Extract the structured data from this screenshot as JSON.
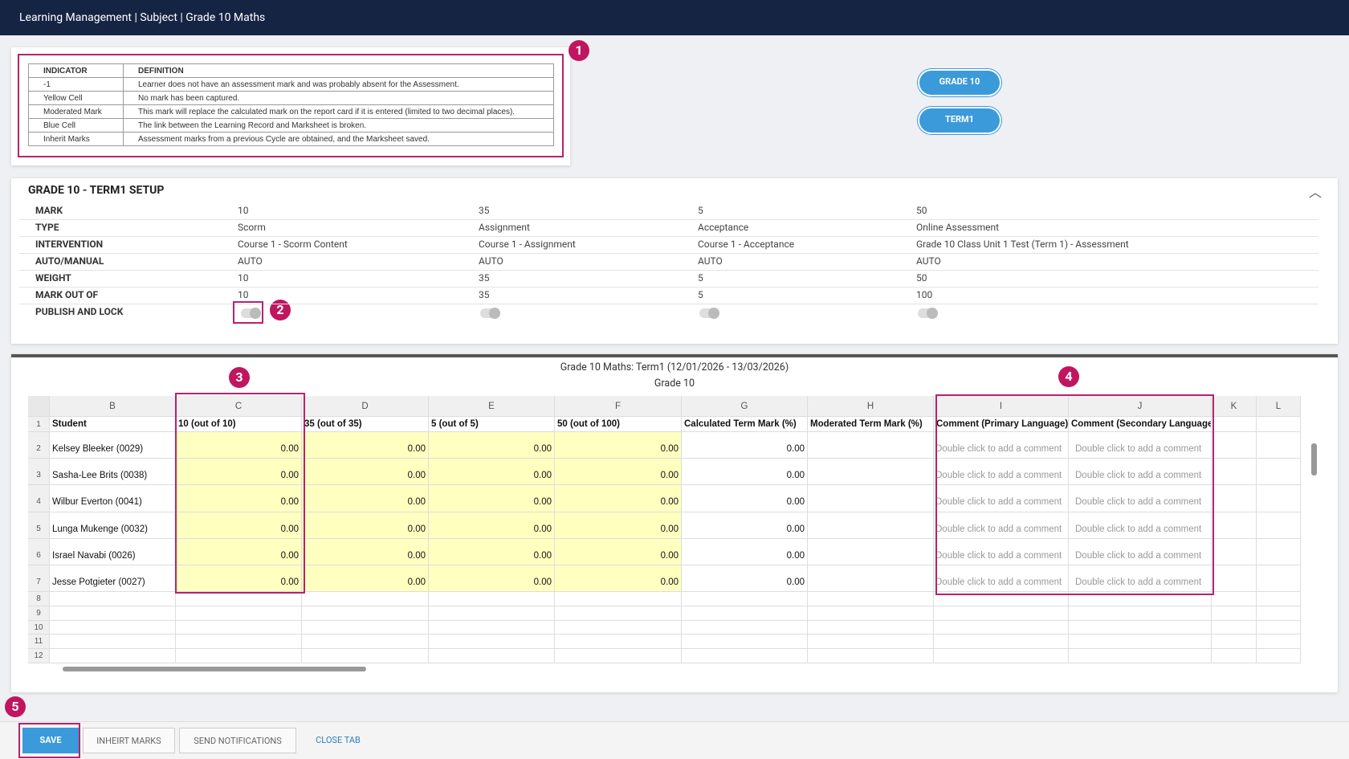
{
  "header": {
    "title": "Learning Management | Subject | Grade 10 Maths"
  },
  "legend": {
    "headers": [
      "INDICATOR",
      "DEFINITION"
    ],
    "rows": [
      [
        "-1",
        "Learner does not have an assessment mark and was probably absent for the Assessment."
      ],
      [
        "Yellow Cell",
        "No mark has been captured."
      ],
      [
        "Moderated Mark",
        "This mark will replace the calculated mark on the report card if it is entered (limited to two decimal places)."
      ],
      [
        "Blue Cell",
        "The link between the Learning Record and Marksheet is broken."
      ],
      [
        "Inherit Marks",
        "Assessment marks from a previous Cycle are obtained, and the Marksheet saved."
      ]
    ]
  },
  "filters": [
    "GRADE 10",
    "TERM1"
  ],
  "callouts": [
    "1",
    "2",
    "3",
    "4",
    "5"
  ],
  "setup": {
    "title": "GRADE 10 - TERM1 SETUP",
    "rows": [
      {
        "label": "MARK",
        "values": [
          "10",
          "35",
          "5",
          "50"
        ]
      },
      {
        "label": "TYPE",
        "values": [
          "Scorm",
          "Assignment",
          "Acceptance",
          "Online Assessment"
        ]
      },
      {
        "label": "INTERVENTION",
        "values": [
          "Course 1 - Scorm Content",
          "Course 1 - Assignment",
          "Course 1 - Acceptance",
          "Grade 10 Class Unit 1 Test (Term 1) - Assessment"
        ]
      },
      {
        "label": "AUTO/MANUAL",
        "values": [
          "AUTO",
          "AUTO",
          "AUTO",
          "AUTO"
        ]
      },
      {
        "label": "WEIGHT",
        "values": [
          "10",
          "35",
          "5",
          "50"
        ]
      },
      {
        "label": "MARK OUT OF",
        "values": [
          "10",
          "35",
          "5",
          "100"
        ]
      }
    ],
    "publish_label": "PUBLISH AND LOCK"
  },
  "sheet": {
    "title": "Grade 10 Maths: Term1 (12/01/2026 - 13/03/2026)",
    "subtitle": "Grade 10",
    "columns": [
      "B",
      "C",
      "D",
      "E",
      "F",
      "G",
      "H",
      "I",
      "J",
      "K",
      "L"
    ],
    "row_numbers": [
      "1",
      "2",
      "3",
      "4",
      "5",
      "6",
      "7",
      "8",
      "9",
      "10",
      "11",
      "12"
    ],
    "header_row": [
      "Student",
      "10 (out of 10)",
      "35 (out of 35)",
      "5 (out of 5)",
      "50 (out of 100)",
      "Calculated Term Mark (%)",
      "Moderated Term Mark (%)",
      "Comment (Primary Language)",
      "Comment (Secondary Language)"
    ],
    "rows": [
      {
        "student": "Kelsey Bleeker (0029)",
        "marks": [
          "0.00",
          "0.00",
          "0.00",
          "0.00",
          "0.00"
        ],
        "comments": [
          "Double click to add a comment",
          "Double click to add a comment"
        ]
      },
      {
        "student": "Sasha-Lee Brits (0038)",
        "marks": [
          "0.00",
          "0.00",
          "0.00",
          "0.00",
          "0.00"
        ],
        "comments": [
          "Double click to add a comment",
          "Double click to add a comment"
        ]
      },
      {
        "student": "Wilbur Everton (0041)",
        "marks": [
          "0.00",
          "0.00",
          "0.00",
          "0.00",
          "0.00"
        ],
        "comments": [
          "Double click to add a comment",
          "Double click to add a comment"
        ]
      },
      {
        "student": "Lunga Mukenge (0032)",
        "marks": [
          "0.00",
          "0.00",
          "0.00",
          "0.00",
          "0.00"
        ],
        "comments": [
          "Double click to add a comment",
          "Double click to add a comment"
        ]
      },
      {
        "student": "Israel Navabi (0026)",
        "marks": [
          "0.00",
          "0.00",
          "0.00",
          "0.00",
          "0.00"
        ],
        "comments": [
          "Double click to add a comment",
          "Double click to add a comment"
        ]
      },
      {
        "student": "Jesse Potgieter (0027)",
        "marks": [
          "0.00",
          "0.00",
          "0.00",
          "0.00",
          "0.00"
        ],
        "comments": [
          "Double click to add a comment",
          "Double click to add a comment"
        ]
      }
    ]
  },
  "footer": {
    "buttons": [
      "SAVE",
      "INHEIRT MARKS",
      "SEND NOTIFICATIONS",
      "CLOSE TAB"
    ]
  }
}
